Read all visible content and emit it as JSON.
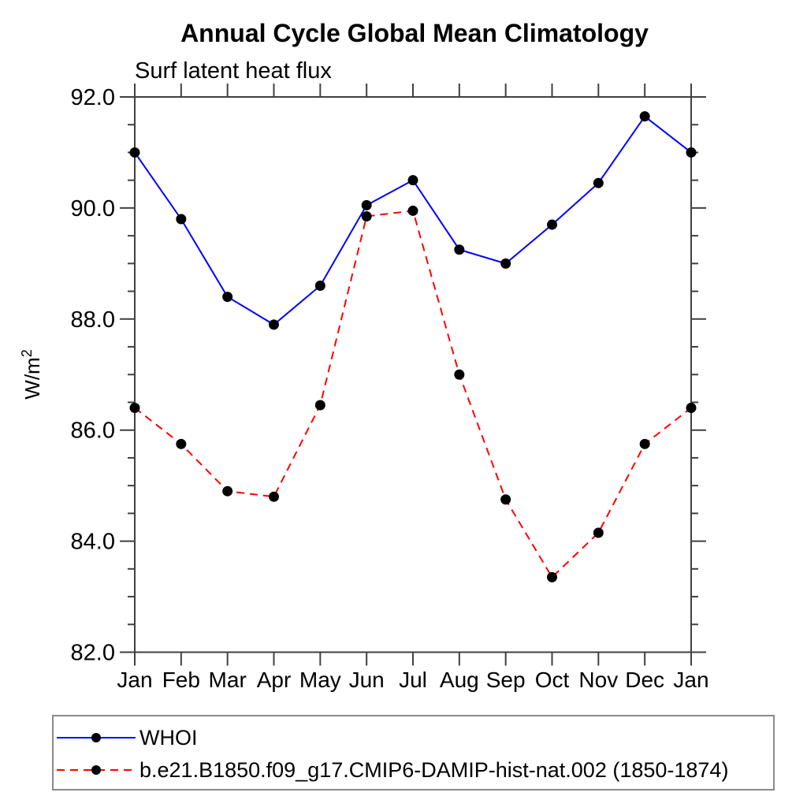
{
  "chart_data": {
    "type": "line",
    "title": "Annual Cycle Global Mean Climatology",
    "subtitle": "Surf latent heat flux",
    "ylabel": "W/m²",
    "ylabel_base": "W/m",
    "ylabel_exponent": "2",
    "categories": [
      "Jan",
      "Feb",
      "Mar",
      "Apr",
      "May",
      "Jun",
      "Jul",
      "Aug",
      "Sep",
      "Oct",
      "Nov",
      "Dec",
      "Jan"
    ],
    "ylim": [
      82.0,
      92.0
    ],
    "yticks_major": [
      82.0,
      84.0,
      86.0,
      88.0,
      90.0,
      92.0
    ],
    "ytick_labels": [
      "82.0",
      "84.0",
      "86.0",
      "88.0",
      "90.0",
      "92.0"
    ],
    "y_minor_step": 0.5,
    "ytick_decimals": 1,
    "grid": "off",
    "legend_position": "bottom-left-box",
    "colors": {
      "axis": "#404040",
      "text": "#000000",
      "marker": "#000000"
    },
    "marker_radius": 6.5,
    "series": [
      {
        "id": "whoi",
        "name": "WHOI",
        "color": "#0000ff",
        "line_style": "solid",
        "values": [
          91.0,
          89.8,
          88.4,
          87.9,
          88.6,
          90.05,
          90.5,
          89.25,
          89.0,
          89.7,
          90.45,
          91.65,
          91.0
        ]
      },
      {
        "id": "model",
        "name": "b.e21.B1850.f09_g17.CMIP6-DAMIP-hist-nat.002 (1850-1874)",
        "color": "#ff0000",
        "line_style": "dashed",
        "values": [
          86.4,
          85.75,
          84.9,
          84.8,
          86.45,
          89.85,
          89.95,
          87.0,
          84.75,
          83.35,
          84.15,
          85.75,
          86.4
        ]
      }
    ]
  }
}
